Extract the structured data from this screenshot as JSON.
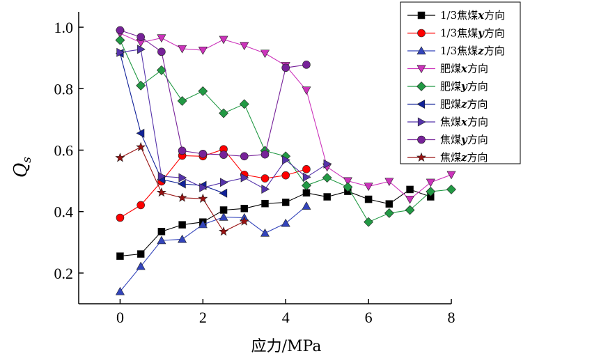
{
  "chart_data": {
    "type": "line",
    "title": "",
    "xlabel": "应力/MPa",
    "ylabel_main": "Q",
    "ylabel_sub": "s",
    "xlim": [
      -1,
      8
    ],
    "ylim": [
      0.1,
      1.05
    ],
    "xticks": [
      0,
      2,
      4,
      6,
      8
    ],
    "xtick_labels": [
      "0",
      "2",
      "4",
      "6",
      "8"
    ],
    "yticks": [
      0.2,
      0.4,
      0.6,
      0.8,
      1.0
    ],
    "ytick_labels": [
      "0.2",
      "0.4",
      "0.6",
      "0.8",
      "1.0"
    ],
    "grid": false,
    "legend_position": "top-right",
    "series": [
      {
        "name": "1/3焦煤x方向",
        "prefix": "1/3焦煤",
        "axis": "x",
        "suffix": "方向",
        "color": "#000000",
        "marker": "square",
        "points": [
          [
            0,
            0.255
          ],
          [
            0.5,
            0.262
          ],
          [
            1.0,
            0.335
          ],
          [
            1.5,
            0.357
          ],
          [
            2.0,
            0.366
          ],
          [
            2.5,
            0.405
          ],
          [
            3.0,
            0.41
          ],
          [
            3.5,
            0.426
          ],
          [
            4.0,
            0.43
          ],
          [
            4.5,
            0.461
          ],
          [
            5.0,
            0.448
          ],
          [
            5.5,
            0.466
          ],
          [
            6.0,
            0.44
          ],
          [
            6.5,
            0.425
          ],
          [
            7.0,
            0.472
          ],
          [
            7.5,
            0.448
          ]
        ]
      },
      {
        "name": "1/3焦煤y方向",
        "prefix": "1/3焦煤",
        "axis": "y",
        "suffix": "方向",
        "color": "#ff0000",
        "marker": "circle",
        "points": [
          [
            0,
            0.38
          ],
          [
            0.5,
            0.421
          ],
          [
            1.0,
            0.498
          ],
          [
            1.5,
            0.582
          ],
          [
            2.0,
            0.58
          ],
          [
            2.5,
            0.603
          ],
          [
            3.0,
            0.52
          ],
          [
            3.5,
            0.508
          ],
          [
            4.0,
            0.518
          ],
          [
            4.5,
            0.538
          ]
        ]
      },
      {
        "name": "1/3焦煤z方向",
        "prefix": "1/3焦煤",
        "axis": "z",
        "suffix": "方向",
        "color": "#3344bb",
        "marker": "triangle-up",
        "points": [
          [
            0,
            0.14
          ],
          [
            0.5,
            0.222
          ],
          [
            1.0,
            0.306
          ],
          [
            1.5,
            0.31
          ],
          [
            2.0,
            0.358
          ],
          [
            2.5,
            0.382
          ],
          [
            3.0,
            0.38
          ],
          [
            3.5,
            0.33
          ],
          [
            4.0,
            0.362
          ],
          [
            4.5,
            0.418
          ]
        ]
      },
      {
        "name": "肥煤x方向",
        "prefix": "肥煤",
        "axis": "x",
        "suffix": "方向",
        "color": "#cc33bb",
        "marker": "triangle-down",
        "points": [
          [
            0,
            0.98
          ],
          [
            0.5,
            0.95
          ],
          [
            1.0,
            0.965
          ],
          [
            1.5,
            0.93
          ],
          [
            2.0,
            0.925
          ],
          [
            2.5,
            0.96
          ],
          [
            3.0,
            0.94
          ],
          [
            3.5,
            0.915
          ],
          [
            4.0,
            0.875
          ],
          [
            4.5,
            0.795
          ],
          [
            5.0,
            0.545
          ],
          [
            5.5,
            0.5
          ],
          [
            6.0,
            0.482
          ],
          [
            6.5,
            0.498
          ],
          [
            7.0,
            0.44
          ],
          [
            7.5,
            0.495
          ],
          [
            8.0,
            0.52
          ]
        ]
      },
      {
        "name": "肥煤y方向",
        "prefix": "肥煤",
        "axis": "y",
        "suffix": "方向",
        "color": "#229944",
        "marker": "diamond",
        "points": [
          [
            0,
            0.958
          ],
          [
            0.5,
            0.81
          ],
          [
            1.0,
            0.86
          ],
          [
            1.5,
            0.76
          ],
          [
            2.0,
            0.792
          ],
          [
            2.5,
            0.72
          ],
          [
            3.0,
            0.75
          ],
          [
            3.5,
            0.598
          ],
          [
            4.0,
            0.58
          ],
          [
            4.5,
            0.485
          ],
          [
            5.0,
            0.51
          ],
          [
            5.5,
            0.48
          ],
          [
            6.0,
            0.366
          ],
          [
            6.5,
            0.395
          ],
          [
            7.0,
            0.405
          ],
          [
            7.5,
            0.465
          ],
          [
            8.0,
            0.472
          ]
        ]
      },
      {
        "name": "肥煤z方向",
        "prefix": "肥煤",
        "axis": "z",
        "suffix": "方向",
        "color": "#112299",
        "marker": "triangle-left",
        "points": [
          [
            0,
            0.915
          ],
          [
            0.5,
            0.655
          ],
          [
            1.0,
            0.505
          ],
          [
            1.5,
            0.49
          ],
          [
            2.0,
            0.485
          ],
          [
            2.5,
            0.46
          ]
        ]
      },
      {
        "name": "焦煤x方向",
        "prefix": "焦煤",
        "axis": "x",
        "suffix": "方向",
        "color": "#5533aa",
        "marker": "triangle-right",
        "points": [
          [
            0,
            0.918
          ],
          [
            0.5,
            0.928
          ],
          [
            1.0,
            0.515
          ],
          [
            1.5,
            0.51
          ],
          [
            2.0,
            0.478
          ],
          [
            2.5,
            0.495
          ],
          [
            3.0,
            0.51
          ],
          [
            3.5,
            0.473
          ],
          [
            4.0,
            0.568
          ],
          [
            4.5,
            0.512
          ],
          [
            5.0,
            0.555
          ]
        ]
      },
      {
        "name": "焦煤y方向",
        "prefix": "焦煤",
        "axis": "y",
        "suffix": "方向",
        "color": "#772299",
        "marker": "circle",
        "points": [
          [
            0,
            0.99
          ],
          [
            0.5,
            0.968
          ],
          [
            1.0,
            0.92
          ],
          [
            1.5,
            0.598
          ],
          [
            2.0,
            0.588
          ],
          [
            2.5,
            0.585
          ],
          [
            3.0,
            0.58
          ],
          [
            3.5,
            0.586
          ],
          [
            4.0,
            0.868
          ],
          [
            4.5,
            0.878
          ]
        ]
      },
      {
        "name": "焦煤z方向",
        "prefix": "焦煤",
        "axis": "z",
        "suffix": "方向",
        "color": "#991111",
        "marker": "star",
        "points": [
          [
            0,
            0.575
          ],
          [
            0.5,
            0.61
          ],
          [
            1.0,
            0.462
          ],
          [
            1.5,
            0.445
          ],
          [
            2.0,
            0.442
          ],
          [
            2.5,
            0.335
          ],
          [
            3.0,
            0.368
          ]
        ]
      }
    ]
  }
}
